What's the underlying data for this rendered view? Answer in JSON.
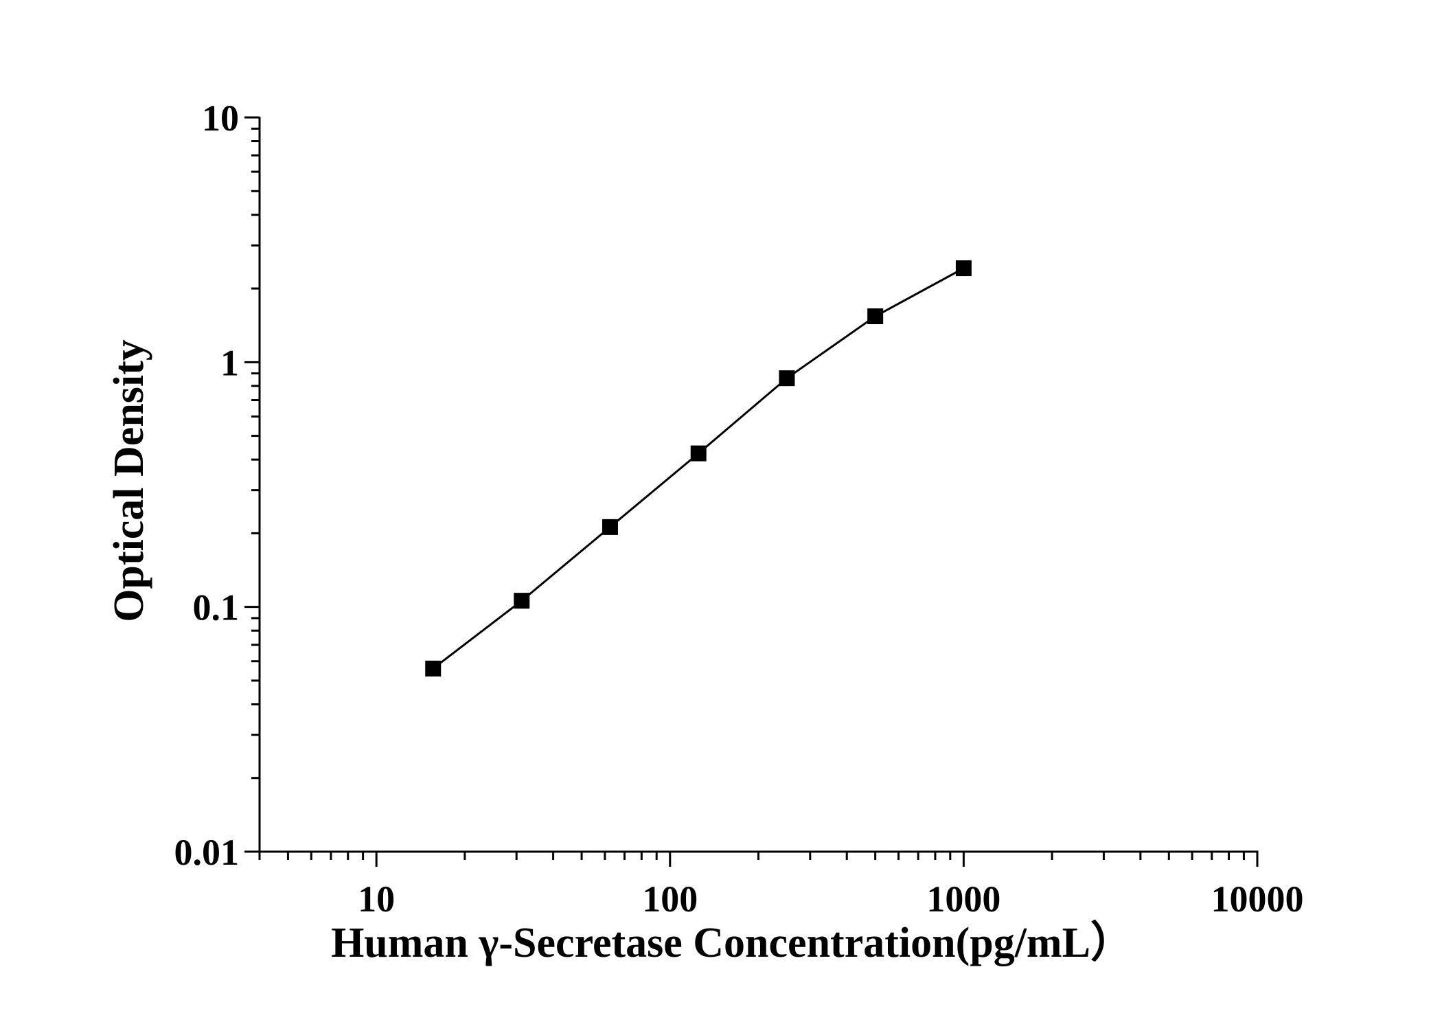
{
  "chart_data": {
    "type": "line",
    "title": "",
    "xlabel": "Human γ-Secretase Concentration(pg/mL）",
    "ylabel": "Optical Density",
    "x_scale": "log",
    "y_scale": "log",
    "xlim": [
      4,
      10000
    ],
    "ylim": [
      0.01,
      10
    ],
    "x_ticks": [
      {
        "value": 10,
        "label": "10"
      },
      {
        "value": 100,
        "label": "100"
      },
      {
        "value": 1000,
        "label": "1000"
      },
      {
        "value": 10000,
        "label": "10000"
      }
    ],
    "y_ticks": [
      {
        "value": 0.01,
        "label": "0.01"
      },
      {
        "value": 0.1,
        "label": "0.1"
      },
      {
        "value": 1,
        "label": "1"
      },
      {
        "value": 10,
        "label": "10"
      }
    ],
    "grid": false,
    "legend": "none",
    "marker": "square",
    "color": "#000000",
    "series": [
      {
        "x": [
          15.6,
          31.25,
          62.5,
          125,
          250,
          500,
          1000
        ],
        "y": [
          0.056,
          0.106,
          0.212,
          0.424,
          0.86,
          1.54,
          2.42
        ]
      }
    ]
  }
}
